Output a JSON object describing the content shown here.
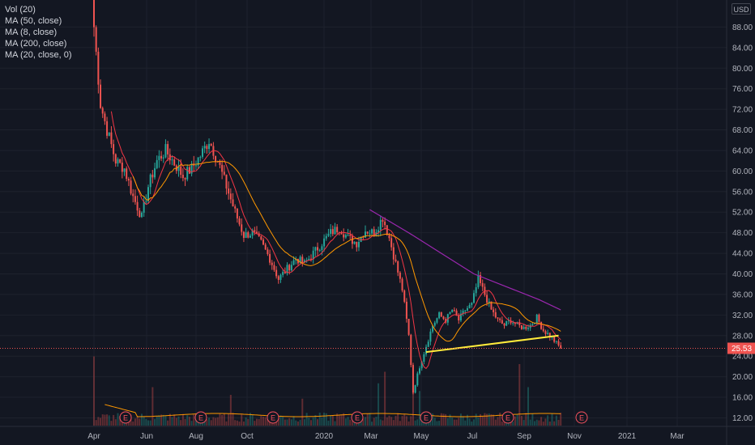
{
  "legend": {
    "items": [
      "Vol (20)",
      "MA (50, close)",
      "MA (8, close)",
      "MA (200, close)",
      "MA (20, close, 0)"
    ]
  },
  "axis": {
    "currency": "USD"
  },
  "colors": {
    "background": "#131722",
    "grid": "#1e222d",
    "up": "#26a69a",
    "down": "#ef5350",
    "ma8": "#f23645",
    "ma50": "#ff9800",
    "ma200": "#9c27b0",
    "trendline": "#ffeb3b",
    "volume_ma": "#ff9800",
    "earnings": "#f7525f"
  },
  "chart_data": {
    "type": "candlestick",
    "ylim": [
      10.5,
      92
    ],
    "y_ticks": [
      "12.00",
      "16.00",
      "20.00",
      "24.00",
      "28.00",
      "32.00",
      "36.00",
      "40.00",
      "44.00",
      "48.00",
      "52.00",
      "56.00",
      "60.00",
      "64.00",
      "68.00",
      "72.00",
      "76.00",
      "80.00",
      "84.00",
      "88.00"
    ],
    "x_ticks": [
      "Apr",
      "Jun",
      "Aug",
      "Oct",
      "2020",
      "Mar",
      "May",
      "Jul",
      "Sep",
      "Nov",
      "2021",
      "Mar"
    ],
    "price_path": [
      [
        0,
        88.0
      ],
      [
        3,
        73.0
      ],
      [
        6,
        68.0
      ],
      [
        10,
        62.0
      ],
      [
        14,
        60.5
      ],
      [
        18,
        55.0
      ],
      [
        22,
        51.0
      ],
      [
        25,
        57.0
      ],
      [
        29,
        62.0
      ],
      [
        33,
        64.0
      ],
      [
        37,
        61.5
      ],
      [
        41,
        59.0
      ],
      [
        45,
        60.5
      ],
      [
        49,
        63.0
      ],
      [
        53,
        66.0
      ],
      [
        57,
        62.0
      ],
      [
        61,
        57.0
      ],
      [
        65,
        52.0
      ],
      [
        69,
        47.5
      ],
      [
        73,
        48.0
      ],
      [
        77,
        46.0
      ],
      [
        81,
        43.0
      ],
      [
        85,
        39.0
      ],
      [
        89,
        41.0
      ],
      [
        93,
        43.0
      ],
      [
        97,
        42.0
      ],
      [
        101,
        44.0
      ],
      [
        105,
        46.0
      ],
      [
        109,
        48.0
      ],
      [
        113,
        49.0
      ],
      [
        117,
        47.0
      ],
      [
        121,
        46.0
      ],
      [
        125,
        48.5
      ],
      [
        129,
        48.0
      ],
      [
        133,
        51.0
      ],
      [
        136,
        47.0
      ],
      [
        139,
        42.0
      ],
      [
        142,
        37.0
      ],
      [
        145,
        28.0
      ],
      [
        147,
        17.0
      ],
      [
        150,
        22.0
      ],
      [
        153,
        26.0
      ],
      [
        156,
        30.0
      ],
      [
        159,
        32.0
      ],
      [
        162,
        31.0
      ],
      [
        165,
        33.0
      ],
      [
        168,
        31.0
      ],
      [
        171,
        33.0
      ],
      [
        174,
        34.0
      ],
      [
        177,
        39.0
      ],
      [
        180,
        36.0
      ],
      [
        183,
        33.0
      ],
      [
        186,
        31.0
      ],
      [
        189,
        30.0
      ],
      [
        192,
        31.0
      ],
      [
        195,
        30.0
      ],
      [
        198,
        29.5
      ],
      [
        201,
        30.0
      ],
      [
        204,
        31.5
      ],
      [
        207,
        29.0
      ],
      [
        210,
        28.0
      ],
      [
        213,
        26.5
      ],
      [
        215,
        25.53
      ]
    ],
    "price_seed": 7,
    "volume_spikes": [
      [
        0,
        0.9
      ],
      [
        27,
        0.5
      ],
      [
        63,
        0.4
      ],
      [
        96,
        0.35
      ],
      [
        131,
        0.55
      ],
      [
        134,
        0.7
      ],
      [
        147,
        0.6
      ],
      [
        150,
        0.45
      ],
      [
        196,
        0.8
      ],
      [
        200,
        0.5
      ]
    ],
    "moving_averages": [
      {
        "name": "MA (8, close)",
        "period": 8
      },
      {
        "name": "MA (50, close)",
        "period": 50
      },
      {
        "name": "MA (200, close)",
        "period": 200
      }
    ],
    "ma200_anchor": [
      [
        127,
        52.5
      ],
      [
        145,
        48.0
      ],
      [
        160,
        44.0
      ],
      [
        175,
        40.0
      ],
      [
        190,
        37.5
      ],
      [
        205,
        35.0
      ],
      [
        215,
        33.0
      ]
    ],
    "trendline": {
      "from": [
        153,
        24.8
      ],
      "to": [
        214,
        28.0
      ]
    },
    "earnings_events": [
      9,
      33,
      56,
      83,
      109,
      131,
      162,
      200
    ],
    "last_price": "25.53"
  }
}
